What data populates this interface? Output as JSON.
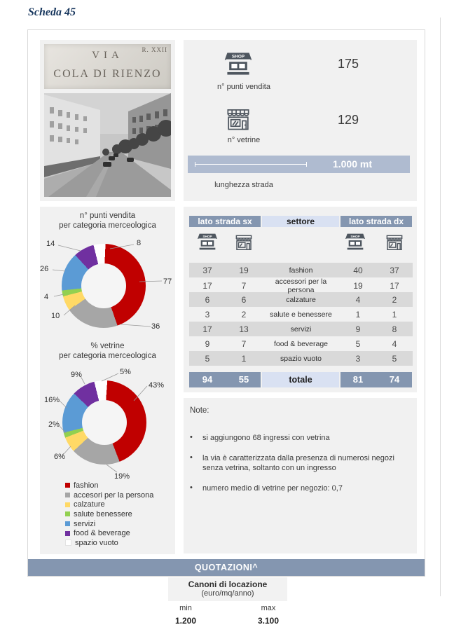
{
  "title": "Scheda 45",
  "sign": {
    "corner": "R. XXII",
    "line1": "VIA",
    "line2": "COLA DI RIENZO"
  },
  "stats": {
    "punti_vendita_label": "n° punti vendita",
    "punti_vendita_value": "175",
    "vetrine_label": "n° vetrine",
    "vetrine_value": "129",
    "lunghezza_label": "lunghezza strada",
    "lunghezza_value": "1.000 mt"
  },
  "chart_data": [
    {
      "type": "pie",
      "subtype": "donut",
      "title": "n° punti vendita per categoria merceologica",
      "title_line1": "n° punti vendita",
      "title_line2": "per categoria merceologica",
      "start_angle_deg": -14,
      "total": 175,
      "segments": [
        {
          "label": "spazio vuoto",
          "value": 8,
          "display": "8",
          "color": "#FFFFFF"
        },
        {
          "label": "fashion",
          "value": 77,
          "display": "77",
          "color": "#C00000"
        },
        {
          "label": "accesori per la persona",
          "value": 36,
          "display": "36",
          "color": "#A6A6A6"
        },
        {
          "label": "calzature",
          "value": 10,
          "display": "10",
          "color": "#FFD966"
        },
        {
          "label": "salute benessere",
          "value": 4,
          "display": "4",
          "color": "#92D050"
        },
        {
          "label": "servizi",
          "value": 26,
          "display": "26",
          "color": "#5B9BD5"
        },
        {
          "label": "food & beverage",
          "value": 14,
          "display": "14",
          "color": "#7030A0"
        }
      ]
    },
    {
      "type": "pie",
      "subtype": "donut",
      "title": "% vetrine per categoria merceologica",
      "title_line1": "% vetrine",
      "title_line2": "per categoria merceologica",
      "start_angle_deg": -14,
      "total": 100,
      "segments": [
        {
          "label": "spazio vuoto",
          "value": 5,
          "display": "5%",
          "color": "#FFFFFF"
        },
        {
          "label": "fashion",
          "value": 43,
          "display": "43%",
          "color": "#C00000"
        },
        {
          "label": "accesori per la persona",
          "value": 19,
          "display": "19%",
          "color": "#A6A6A6"
        },
        {
          "label": "calzature",
          "value": 6,
          "display": "6%",
          "color": "#FFD966"
        },
        {
          "label": "salute benessere",
          "value": 2,
          "display": "2%",
          "color": "#92D050"
        },
        {
          "label": "servizi",
          "value": 16,
          "display": "16%",
          "color": "#5B9BD5"
        },
        {
          "label": "food & beverage",
          "value": 9,
          "display": "9%",
          "color": "#7030A0"
        }
      ]
    }
  ],
  "legend": [
    {
      "label": "fashion",
      "color": "#C00000"
    },
    {
      "label": "accesori per la persona",
      "color": "#A6A6A6"
    },
    {
      "label": "calzature",
      "color": "#FFD966"
    },
    {
      "label": "salute benessere",
      "color": "#92D050"
    },
    {
      "label": "servizi",
      "color": "#5B9BD5"
    },
    {
      "label": "food & beverage",
      "color": "#7030A0"
    },
    {
      "label": "spazio vuoto",
      "color": "#FFFFFF"
    }
  ],
  "table": {
    "header_sx": "lato strada sx",
    "header_settore": "settore",
    "header_dx": "lato strada dx",
    "rows": [
      [
        "37",
        "19",
        "fashion",
        "40",
        "37"
      ],
      [
        "17",
        "7",
        "accessori per la persona",
        "19",
        "17"
      ],
      [
        "6",
        "6",
        "calzature",
        "4",
        "2"
      ],
      [
        "3",
        "2",
        "salute e benessere",
        "1",
        "1"
      ],
      [
        "17",
        "13",
        "servizi",
        "9",
        "8"
      ],
      [
        "9",
        "7",
        "food & beverage",
        "5",
        "4"
      ],
      [
        "5",
        "1",
        "spazio vuoto",
        "3",
        "5"
      ]
    ],
    "total_row": [
      "94",
      "55",
      "totale",
      "81",
      "74"
    ]
  },
  "note": {
    "heading": "Note:",
    "bullets": [
      "si aggiungono 68 ingressi con vetrina",
      "la via è caratterizzata dalla presenza di numerosi negozi senza vetrina, soltanto con un ingresso",
      "numero medio di vetrine per negozio: 0,7"
    ]
  },
  "quotazioni": {
    "bar_label": "QUOTAZIONI^",
    "box_title": "Canoni di locazione",
    "box_subtitle": "(euro/mq/anno)",
    "min_label": "min",
    "max_label": "max",
    "min_value": "1.200",
    "max_value": "3.100"
  },
  "colors": {
    "accent_header": "#8496B0",
    "accent_light": "#D9E1F2",
    "measure_bar": "#AFBBD0",
    "panel_bg": "#F1F1F1",
    "row_shade": "#D9D9D9",
    "title_navy": "#17365D",
    "icon_gray": "#4E565F"
  }
}
